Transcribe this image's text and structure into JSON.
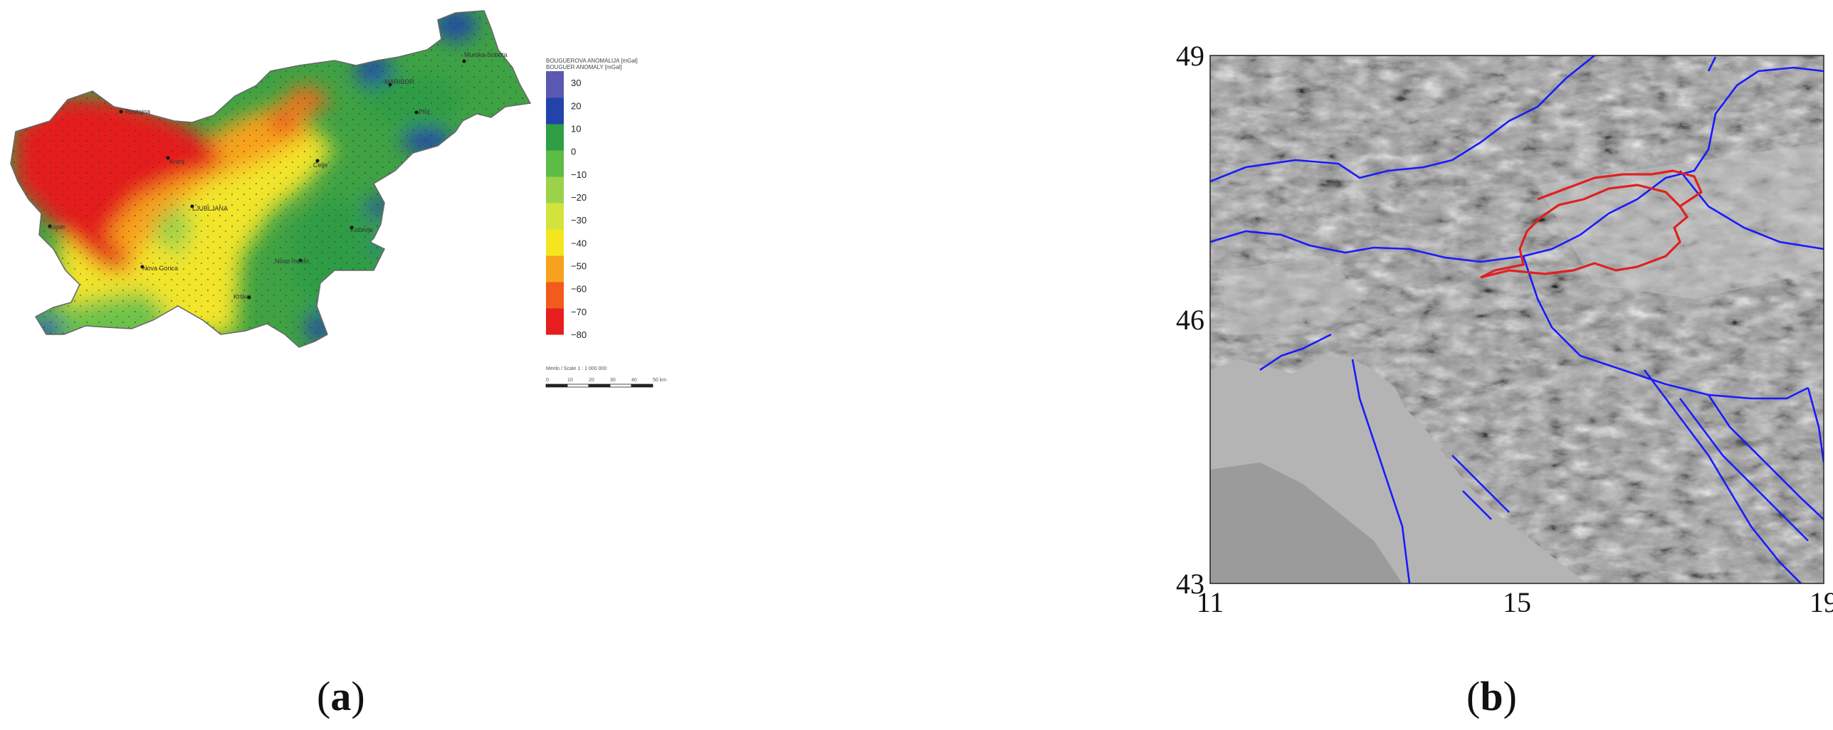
{
  "panel_a": {
    "legend": {
      "title_line1": "BOUGUEROVA ANOMALIJA [mGal]",
      "title_line2": "BOUGUER ANOMALY [mGal]",
      "ticks": [
        "30",
        "20",
        "10",
        "0",
        "−10",
        "−20",
        "−30",
        "−40",
        "−50",
        "−60",
        "−70",
        "−80"
      ],
      "value_range": [
        -80,
        35
      ],
      "colors": [
        "#e61e1e",
        "#f25a1e",
        "#f7a21e",
        "#f4e61e",
        "#d2e43c",
        "#9cd24a",
        "#5cbc46",
        "#2f9e44",
        "#2244aa",
        "#5a58b0"
      ]
    },
    "scale": {
      "label": "Merilo / Scale 1 : 1 000 000",
      "ticks": [
        "0",
        "10",
        "20",
        "30",
        "40",
        "50 km"
      ]
    },
    "places": [
      "MARIBOR",
      "Murska Sobota",
      "LJUBLJANA",
      "Celje",
      "Kranj",
      "Koper",
      "Novo mesto",
      "Krško",
      "Nova Gorica",
      "Postojna",
      "Kočevje",
      "Ptuj"
    ],
    "caption_letter": "a"
  },
  "panel_b": {
    "y_ticks": [
      "49",
      "46",
      "43"
    ],
    "x_ticks": [
      "11",
      "15",
      "19"
    ],
    "lon_range": [
      11,
      19
    ],
    "lat_range": [
      43,
      49
    ],
    "border_colors": {
      "country_borders": "#1a1aff",
      "slovenia_border": "#e02020",
      "sea": "#b4b4b4"
    },
    "caption_letter": "b"
  }
}
